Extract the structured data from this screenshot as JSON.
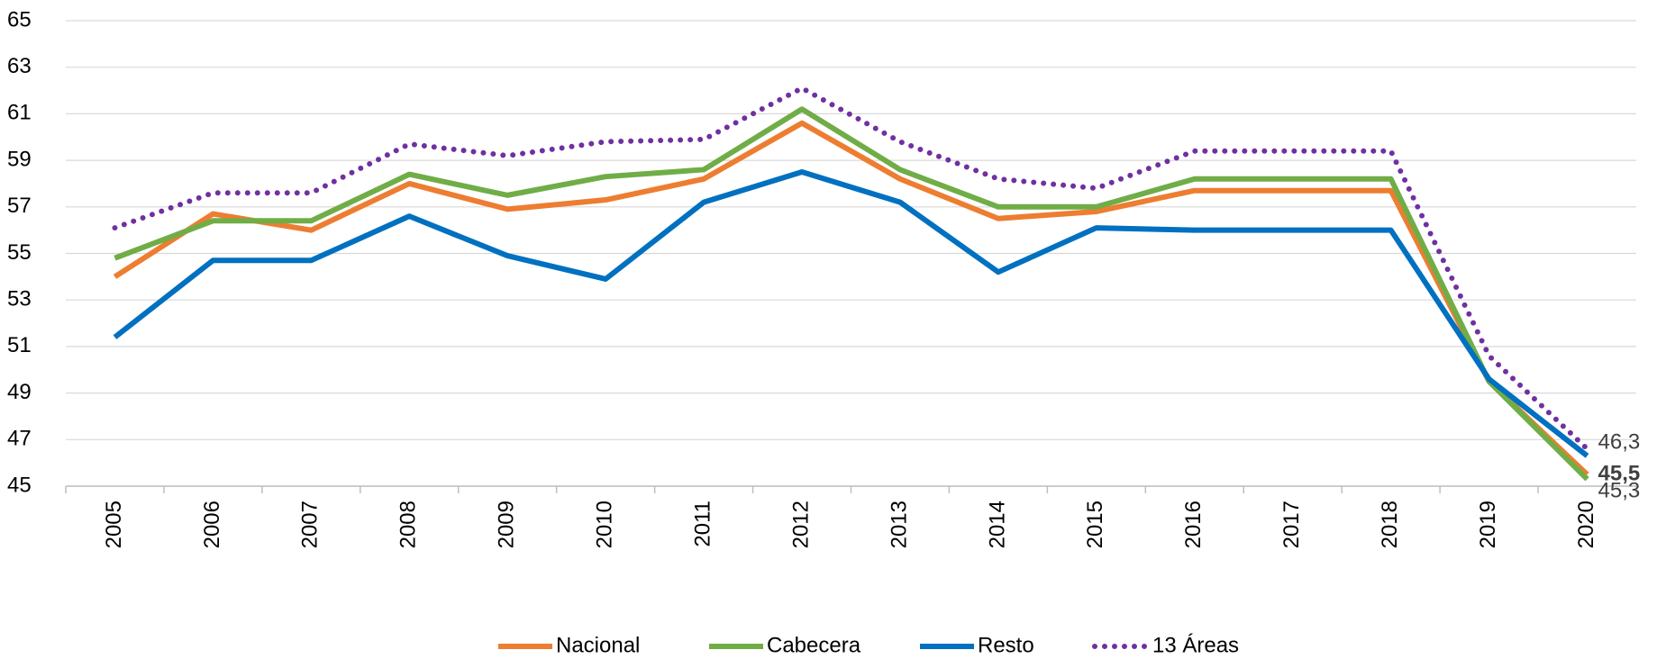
{
  "chart_data": {
    "type": "line",
    "categories": [
      "2005",
      "2006",
      "2007",
      "2008",
      "2009",
      "2010",
      "2011",
      "2012",
      "2013",
      "2014",
      "2015",
      "2016",
      "2017",
      "2018",
      "2019",
      "2020"
    ],
    "series": [
      {
        "name": "Nacional",
        "color": "#ed7d31",
        "style": "solid",
        "values": [
          54.0,
          56.7,
          56.0,
          58.0,
          56.9,
          57.3,
          58.2,
          60.6,
          58.2,
          56.5,
          56.8,
          57.7,
          57.7,
          57.7,
          49.5,
          45.5
        ],
        "value_labels": [
          null,
          null,
          null,
          null,
          null,
          null,
          null,
          null,
          null,
          null,
          null,
          null,
          null,
          null,
          null,
          "45,5"
        ]
      },
      {
        "name": "Cabecera",
        "color": "#70ad47",
        "style": "solid",
        "values": [
          54.8,
          56.4,
          56.4,
          58.4,
          57.5,
          58.3,
          58.6,
          61.2,
          58.6,
          57.0,
          57.0,
          58.2,
          58.2,
          58.2,
          49.5,
          45.3
        ],
        "value_labels": [
          null,
          null,
          null,
          null,
          null,
          null,
          null,
          null,
          null,
          null,
          null,
          null,
          null,
          null,
          null,
          "45,3"
        ]
      },
      {
        "name": "Resto",
        "color": "#0070c0",
        "style": "solid",
        "values": [
          51.4,
          54.7,
          54.7,
          56.6,
          54.9,
          53.9,
          57.2,
          58.5,
          57.2,
          54.2,
          56.1,
          56.0,
          56.0,
          56.0,
          49.6,
          46.3
        ],
        "value_labels": [
          null,
          null,
          null,
          null,
          null,
          null,
          null,
          null,
          null,
          null,
          null,
          null,
          null,
          null,
          null,
          "46,3"
        ]
      },
      {
        "name": "13 Áreas",
        "color": "#7030a0",
        "style": "dotted",
        "values": [
          56.1,
          57.6,
          57.6,
          59.7,
          59.2,
          59.8,
          59.9,
          62.1,
          59.8,
          58.2,
          57.8,
          59.4,
          59.4,
          59.4,
          50.6,
          46.6
        ]
      }
    ],
    "ylim": [
      45,
      65
    ],
    "yticks": [
      45,
      47,
      49,
      51,
      53,
      55,
      57,
      59,
      61,
      63,
      65
    ],
    "grid": true
  }
}
